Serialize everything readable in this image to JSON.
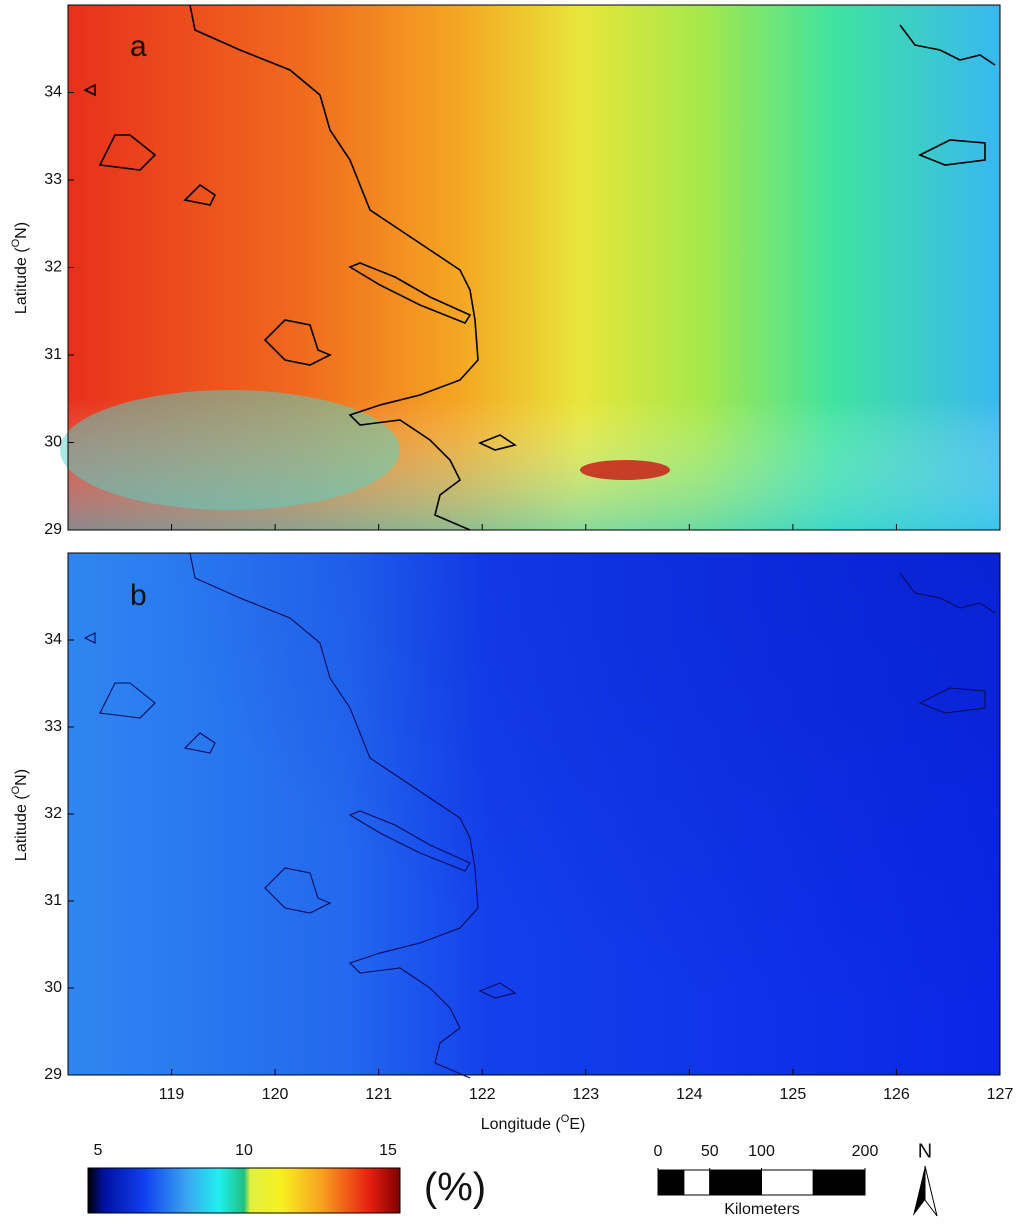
{
  "map": {
    "panels": [
      {
        "label": "a"
      },
      {
        "label": "b"
      }
    ],
    "xlim": [
      118,
      127
    ],
    "ylim": [
      29,
      35
    ],
    "xticks": [
      119,
      120,
      121,
      122,
      123,
      124,
      125,
      126,
      127
    ],
    "yticks": [
      29,
      30,
      31,
      32,
      33,
      34
    ],
    "xlabel": {
      "before": "Longitude (",
      "sup": "O",
      "after": "E)"
    },
    "ylabel": {
      "before": "Latitude (",
      "sup": "O",
      "after": "N)"
    },
    "colorbar": {
      "lim": [
        5,
        15
      ],
      "ticks": [
        5,
        10,
        15
      ],
      "unit": "(%)"
    },
    "scalebar": {
      "lim": [
        0,
        200
      ],
      "ticks": [
        0,
        50,
        100,
        200
      ],
      "label": "Kilometers"
    },
    "north": "N"
  }
}
